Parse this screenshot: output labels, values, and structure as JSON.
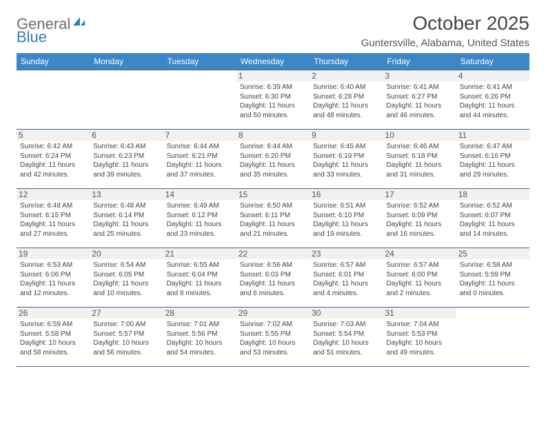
{
  "brand": {
    "word1": "General",
    "word2": "Blue"
  },
  "title": "October 2025",
  "location": "Guntersville, Alabama, United States",
  "colors": {
    "header_bg": "#3d87c7",
    "header_fg": "#ffffff",
    "rule": "#3d6a93",
    "daynum_bg": "#f1f1f1"
  },
  "fonts": {
    "title_pt": 28,
    "location_pt": 15,
    "header_pt": 12,
    "daynum_pt": 12,
    "body_pt": 10
  },
  "day_headers": [
    "Sunday",
    "Monday",
    "Tuesday",
    "Wednesday",
    "Thursday",
    "Friday",
    "Saturday"
  ],
  "weeks": [
    [
      {
        "empty": true
      },
      {
        "empty": true
      },
      {
        "empty": true
      },
      {
        "n": "1",
        "sr": "6:39 AM",
        "ss": "6:30 PM",
        "dl": "11 hours and 50 minutes."
      },
      {
        "n": "2",
        "sr": "6:40 AM",
        "ss": "6:28 PM",
        "dl": "11 hours and 48 minutes."
      },
      {
        "n": "3",
        "sr": "6:41 AM",
        "ss": "6:27 PM",
        "dl": "11 hours and 46 minutes."
      },
      {
        "n": "4",
        "sr": "6:41 AM",
        "ss": "6:26 PM",
        "dl": "11 hours and 44 minutes."
      }
    ],
    [
      {
        "n": "5",
        "sr": "6:42 AM",
        "ss": "6:24 PM",
        "dl": "11 hours and 42 minutes."
      },
      {
        "n": "6",
        "sr": "6:43 AM",
        "ss": "6:23 PM",
        "dl": "11 hours and 39 minutes."
      },
      {
        "n": "7",
        "sr": "6:44 AM",
        "ss": "6:21 PM",
        "dl": "11 hours and 37 minutes."
      },
      {
        "n": "8",
        "sr": "6:44 AM",
        "ss": "6:20 PM",
        "dl": "11 hours and 35 minutes."
      },
      {
        "n": "9",
        "sr": "6:45 AM",
        "ss": "6:19 PM",
        "dl": "11 hours and 33 minutes."
      },
      {
        "n": "10",
        "sr": "6:46 AM",
        "ss": "6:18 PM",
        "dl": "11 hours and 31 minutes."
      },
      {
        "n": "11",
        "sr": "6:47 AM",
        "ss": "6:16 PM",
        "dl": "11 hours and 29 minutes."
      }
    ],
    [
      {
        "n": "12",
        "sr": "6:48 AM",
        "ss": "6:15 PM",
        "dl": "11 hours and 27 minutes."
      },
      {
        "n": "13",
        "sr": "6:48 AM",
        "ss": "6:14 PM",
        "dl": "11 hours and 25 minutes."
      },
      {
        "n": "14",
        "sr": "6:49 AM",
        "ss": "6:12 PM",
        "dl": "11 hours and 23 minutes."
      },
      {
        "n": "15",
        "sr": "6:50 AM",
        "ss": "6:11 PM",
        "dl": "11 hours and 21 minutes."
      },
      {
        "n": "16",
        "sr": "6:51 AM",
        "ss": "6:10 PM",
        "dl": "11 hours and 19 minutes."
      },
      {
        "n": "17",
        "sr": "6:52 AM",
        "ss": "6:09 PM",
        "dl": "11 hours and 16 minutes."
      },
      {
        "n": "18",
        "sr": "6:52 AM",
        "ss": "6:07 PM",
        "dl": "11 hours and 14 minutes."
      }
    ],
    [
      {
        "n": "19",
        "sr": "6:53 AM",
        "ss": "6:06 PM",
        "dl": "11 hours and 12 minutes."
      },
      {
        "n": "20",
        "sr": "6:54 AM",
        "ss": "6:05 PM",
        "dl": "11 hours and 10 minutes."
      },
      {
        "n": "21",
        "sr": "6:55 AM",
        "ss": "6:04 PM",
        "dl": "11 hours and 8 minutes."
      },
      {
        "n": "22",
        "sr": "6:56 AM",
        "ss": "6:03 PM",
        "dl": "11 hours and 6 minutes."
      },
      {
        "n": "23",
        "sr": "6:57 AM",
        "ss": "6:01 PM",
        "dl": "11 hours and 4 minutes."
      },
      {
        "n": "24",
        "sr": "6:57 AM",
        "ss": "6:00 PM",
        "dl": "11 hours and 2 minutes."
      },
      {
        "n": "25",
        "sr": "6:58 AM",
        "ss": "5:59 PM",
        "dl": "11 hours and 0 minutes."
      }
    ],
    [
      {
        "n": "26",
        "sr": "6:59 AM",
        "ss": "5:58 PM",
        "dl": "10 hours and 58 minutes."
      },
      {
        "n": "27",
        "sr": "7:00 AM",
        "ss": "5:57 PM",
        "dl": "10 hours and 56 minutes."
      },
      {
        "n": "28",
        "sr": "7:01 AM",
        "ss": "5:56 PM",
        "dl": "10 hours and 54 minutes."
      },
      {
        "n": "29",
        "sr": "7:02 AM",
        "ss": "5:55 PM",
        "dl": "10 hours and 53 minutes."
      },
      {
        "n": "30",
        "sr": "7:03 AM",
        "ss": "5:54 PM",
        "dl": "10 hours and 51 minutes."
      },
      {
        "n": "31",
        "sr": "7:04 AM",
        "ss": "5:53 PM",
        "dl": "10 hours and 49 minutes."
      },
      {
        "empty": true
      }
    ]
  ],
  "labels": {
    "sunrise": "Sunrise:",
    "sunset": "Sunset:",
    "daylight": "Daylight:"
  }
}
